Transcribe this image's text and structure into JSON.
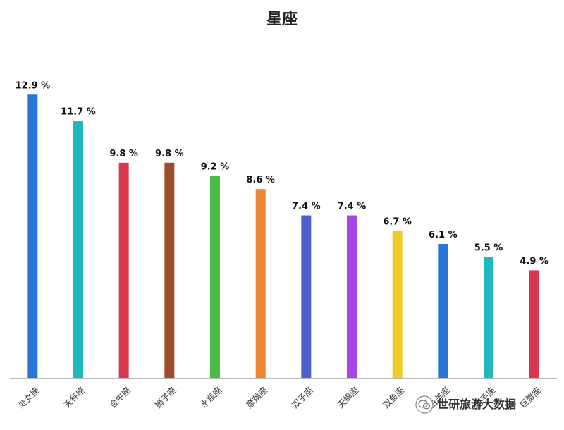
{
  "chart_data": {
    "type": "bar",
    "title": "星座",
    "categories": [
      "处女座",
      "天秤座",
      "金牛座",
      "狮子座",
      "水瓶座",
      "摩羯座",
      "双子座",
      "天蝎座",
      "双鱼座",
      "白羊座",
      "射手座",
      "巨蟹座"
    ],
    "values": [
      12.9,
      11.7,
      9.8,
      9.8,
      9.2,
      8.6,
      7.4,
      7.4,
      6.7,
      6.1,
      5.5,
      4.9
    ],
    "data_labels": [
      "12.9 %",
      "11.7 %",
      "9.8 %",
      "9.8 %",
      "9.2 %",
      "8.6 %",
      "7.4 %",
      "7.4 %",
      "6.7 %",
      "6.1 %",
      "5.5 %",
      "4.9 %"
    ],
    "colors": [
      "#2a74d8",
      "#1fb8bd",
      "#d8384d",
      "#9a4e2a",
      "#4cba46",
      "#ef8634",
      "#4d5fcf",
      "#a746e4",
      "#f1cb2a",
      "#2a74d8",
      "#1fb8bd",
      "#d8384d"
    ],
    "ylim": [
      0,
      14
    ],
    "grid": false,
    "legend": "none",
    "xlabel": "",
    "ylabel": ""
  },
  "watermark": {
    "text": "世研旅游大数据",
    "icon": "wechat-icon"
  }
}
